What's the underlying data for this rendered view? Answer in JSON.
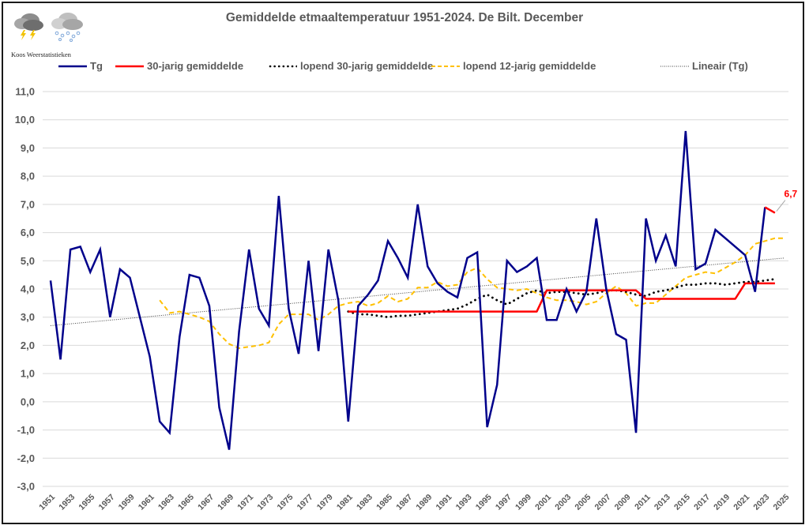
{
  "header": {
    "title": "Gemiddelde etmaaltemperatuur 1951-2024. De Bilt. December",
    "brand": "Koos Weerstatistieken",
    "icons": [
      "thunderstorm-cloud-icon",
      "snow-cloud-icon"
    ]
  },
  "colors": {
    "tg": "#00008b",
    "avg30": "#ff0000",
    "running30": "#000000",
    "running12": "#ffc000",
    "trend": "#404040",
    "grid": "#d9d9d9",
    "axis_text": "#595959"
  },
  "chart_data": {
    "type": "line",
    "title": "Gemiddelde etmaaltemperatuur 1951-2024. De Bilt. December",
    "xlabel": "",
    "ylabel": "",
    "ylim": [
      -3.0,
      11.0
    ],
    "xlim": [
      1951,
      2025
    ],
    "grid": true,
    "legend_position": "top",
    "y_ticks": [
      "11,0",
      "10,0",
      "9,0",
      "8,0",
      "7,0",
      "6,0",
      "5,0",
      "4,0",
      "3,0",
      "2,0",
      "1,0",
      "0,0",
      "-1,0",
      "-2,0",
      "-3,0"
    ],
    "x_ticks": [
      "1951",
      "1953",
      "1955",
      "1957",
      "1959",
      "1961",
      "1963",
      "1965",
      "1967",
      "1969",
      "1971",
      "1973",
      "1975",
      "1977",
      "1979",
      "1981",
      "1983",
      "1985",
      "1987",
      "1989",
      "1991",
      "1993",
      "1995",
      "1997",
      "1999",
      "2001",
      "2003",
      "2005",
      "2007",
      "2009",
      "2011",
      "2013",
      "2015",
      "2017",
      "2019",
      "2021",
      "2023",
      "2025"
    ],
    "legend": [
      {
        "key": "tg",
        "label": "Tg",
        "style": "solid"
      },
      {
        "key": "avg30",
        "label": "30-jarig gemiddelde",
        "style": "solid"
      },
      {
        "key": "running30",
        "label": "lopend 30-jarig gemiddelde",
        "style": "dotted-round"
      },
      {
        "key": "running12",
        "label": "lopend 12-jarig gemiddelde",
        "style": "dashed"
      },
      {
        "key": "trend",
        "label": "Lineair (Tg)",
        "style": "dotted-fine"
      }
    ],
    "series": [
      {
        "name": "Tg",
        "key": "tg",
        "x_start": 1951,
        "values": [
          4.3,
          1.5,
          5.4,
          5.5,
          4.6,
          5.4,
          3.0,
          4.7,
          4.4,
          3.0,
          1.6,
          -0.7,
          -1.1,
          2.3,
          4.5,
          4.4,
          3.4,
          -0.2,
          -1.7,
          2.5,
          5.4,
          3.3,
          2.7,
          7.3,
          3.3,
          1.7,
          5.0,
          1.8,
          5.4,
          3.6,
          -0.7,
          3.4,
          3.8,
          4.3,
          5.7,
          5.1,
          4.4,
          7.0,
          4.8,
          4.2,
          3.9,
          3.7,
          5.1,
          5.3,
          -0.9,
          0.6,
          5.0,
          4.6,
          4.8,
          5.1,
          2.9,
          2.9,
          4.0,
          3.2,
          3.9,
          6.5,
          4.0,
          2.4,
          2.2,
          -1.1,
          6.5,
          5.0,
          5.9,
          4.8,
          9.6,
          4.7,
          4.9,
          6.1,
          5.8,
          5.5,
          5.2,
          3.9,
          6.9,
          6.7
        ],
        "highlight_last_segment_color": "#ff0000"
      },
      {
        "name": "30-jarig gemiddelde",
        "key": "avg30",
        "x_start": 1981,
        "values": [
          3.2,
          3.2,
          3.2,
          3.2,
          3.2,
          3.2,
          3.2,
          3.2,
          3.2,
          3.2,
          3.2,
          3.2,
          3.2,
          3.2,
          3.2,
          3.2,
          3.2,
          3.2,
          3.2,
          3.2,
          3.95,
          3.95,
          3.95,
          3.95,
          3.95,
          3.95,
          3.95,
          3.95,
          3.95,
          3.95,
          3.65,
          3.65,
          3.65,
          3.65,
          3.65,
          3.65,
          3.65,
          3.65,
          3.65,
          3.65,
          4.2,
          4.2,
          4.2,
          4.2
        ]
      },
      {
        "name": "lopend 30-jarig gemiddelde",
        "key": "running30",
        "x_start": 1981,
        "values": [
          3.2,
          3.1,
          3.1,
          3.05,
          3.0,
          3.05,
          3.05,
          3.1,
          3.15,
          3.2,
          3.25,
          3.3,
          3.45,
          3.65,
          3.8,
          3.6,
          3.45,
          3.65,
          3.85,
          3.95,
          3.85,
          3.9,
          3.9,
          3.85,
          3.8,
          3.85,
          3.95,
          3.95,
          3.9,
          3.8,
          3.75,
          3.9,
          3.95,
          4.05,
          4.15,
          4.15,
          4.2,
          4.2,
          4.15,
          4.2,
          4.25,
          4.25,
          4.3,
          4.35
        ]
      },
      {
        "name": "lopend 12-jarig gemiddelde",
        "key": "running12",
        "x_start": 1962,
        "values": [
          3.6,
          3.15,
          3.2,
          3.1,
          3.0,
          2.85,
          2.4,
          2.05,
          1.9,
          1.95,
          2.0,
          2.1,
          2.75,
          3.1,
          3.1,
          3.1,
          2.9,
          3.1,
          3.4,
          3.5,
          3.55,
          3.4,
          3.5,
          3.75,
          3.55,
          3.65,
          4.05,
          4.05,
          4.25,
          4.1,
          4.15,
          4.6,
          4.75,
          4.35,
          4.05,
          4.0,
          3.95,
          4.0,
          3.85,
          3.7,
          3.6,
          3.6,
          3.55,
          3.45,
          3.55,
          3.85,
          4.1,
          3.85,
          3.4,
          3.5,
          3.5,
          3.8,
          4.1,
          4.4,
          4.5,
          4.6,
          4.55,
          4.75,
          4.95,
          5.2,
          5.6,
          5.7,
          5.8,
          5.8
        ]
      },
      {
        "name": "Lineair (Tg)",
        "key": "trend",
        "x": [
          1951,
          2025
        ],
        "values": [
          2.7,
          5.1
        ]
      }
    ],
    "annotations": [
      {
        "x": 2024,
        "y": 6.7,
        "text": "6,7",
        "color": "#ff0000"
      }
    ]
  }
}
